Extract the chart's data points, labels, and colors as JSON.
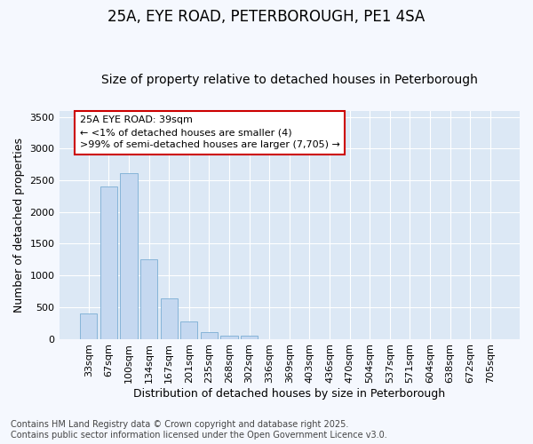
{
  "title1": "25A, EYE ROAD, PETERBOROUGH, PE1 4SA",
  "title2": "Size of property relative to detached houses in Peterborough",
  "xlabel": "Distribution of detached houses by size in Peterborough",
  "ylabel": "Number of detached properties",
  "bar_labels": [
    "33sqm",
    "67sqm",
    "100sqm",
    "134sqm",
    "167sqm",
    "201sqm",
    "235sqm",
    "268sqm",
    "302sqm",
    "336sqm",
    "369sqm",
    "403sqm",
    "436sqm",
    "470sqm",
    "504sqm",
    "537sqm",
    "571sqm",
    "604sqm",
    "638sqm",
    "672sqm",
    "705sqm"
  ],
  "bar_values": [
    400,
    2400,
    2620,
    1250,
    640,
    275,
    100,
    55,
    50,
    0,
    0,
    0,
    0,
    0,
    0,
    0,
    0,
    0,
    0,
    0,
    0
  ],
  "bar_color": "#c5d8f0",
  "bar_edge_color": "#7aadd4",
  "annotation_box_facecolor": "#ffffff",
  "annotation_border_color": "#cc0000",
  "annotation_text_line1": "25A EYE ROAD: 39sqm",
  "annotation_text_line2": "← <1% of detached houses are smaller (4)",
  "annotation_text_line3": ">99% of semi-detached houses are larger (7,705) →",
  "ylim": [
    0,
    3600
  ],
  "yticks": [
    0,
    500,
    1000,
    1500,
    2000,
    2500,
    3000,
    3500
  ],
  "plot_bg_color": "#dce8f5",
  "fig_bg_color": "#f5f8fe",
  "grid_color": "#ffffff",
  "footer_line1": "Contains HM Land Registry data © Crown copyright and database right 2025.",
  "footer_line2": "Contains public sector information licensed under the Open Government Licence v3.0.",
  "title_fontsize": 12,
  "subtitle_fontsize": 10,
  "axis_label_fontsize": 9,
  "tick_fontsize": 8,
  "annotation_fontsize": 8,
  "footer_fontsize": 7
}
